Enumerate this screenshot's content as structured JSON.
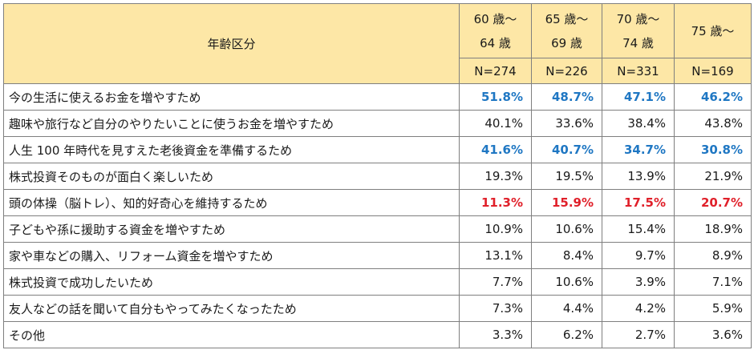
{
  "header": {
    "age_label": "年齢区分",
    "columns": [
      {
        "label": "60 歳〜\n64 歳",
        "n": "N=274"
      },
      {
        "label": "65 歳〜\n69 歳",
        "n": "N=226"
      },
      {
        "label": "70 歳〜\n74 歳",
        "n": "N=331"
      },
      {
        "label": "75 歳〜",
        "n": "N=169"
      }
    ]
  },
  "rows": [
    {
      "item": "今の生活に使えるお金を増やすため",
      "values": [
        "51.8%",
        "48.7%",
        "47.1%",
        "46.2%"
      ],
      "highlight": "blue"
    },
    {
      "item": "趣味や旅行など自分のやりたいことに使うお金を増やすため",
      "values": [
        "40.1%",
        "33.6%",
        "38.4%",
        "43.8%"
      ],
      "highlight": "none"
    },
    {
      "item": "人生 100 年時代を見すえた老後資金を準備するため",
      "values": [
        "41.6%",
        "40.7%",
        "34.7%",
        "30.8%"
      ],
      "highlight": "blue"
    },
    {
      "item": "株式投資そのものが面白く楽しいため",
      "values": [
        "19.3%",
        "19.5%",
        "13.9%",
        "21.9%"
      ],
      "highlight": "none"
    },
    {
      "item": "頭の体操（脳トレ）、知的好奇心を維持するため",
      "values": [
        "11.3%",
        "15.9%",
        "17.5%",
        "20.7%"
      ],
      "highlight": "red"
    },
    {
      "item": "子どもや孫に援助する資金を増やすため",
      "values": [
        "10.9%",
        "10.6%",
        "15.4%",
        "18.9%"
      ],
      "highlight": "none"
    },
    {
      "item": "家や車などの購入、リフォーム資金を増やすため",
      "values": [
        "13.1%",
        "8.4%",
        "9.7%",
        "8.9%"
      ],
      "highlight": "none"
    },
    {
      "item": "株式投資で成功したいため",
      "values": [
        "7.7%",
        "10.6%",
        "3.9%",
        "7.1%"
      ],
      "highlight": "none"
    },
    {
      "item": "友人などの話を聞いて自分もやってみたくなったため",
      "values": [
        "7.3%",
        "4.4%",
        "4.2%",
        "5.9%"
      ],
      "highlight": "none"
    },
    {
      "item": "その他",
      "values": [
        "3.3%",
        "6.2%",
        "2.7%",
        "3.6%"
      ],
      "highlight": "none"
    }
  ],
  "colors": {
    "header_bg": "#fde7a6",
    "blue": "#1f77c3",
    "red": "#e0202a",
    "border": "#7f7f7f"
  }
}
